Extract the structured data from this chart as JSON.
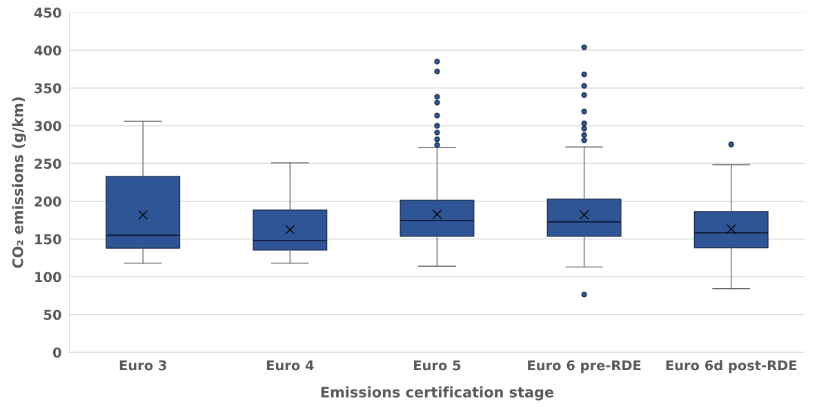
{
  "chart_data": {
    "type": "box",
    "xlabel": "Emissions certification stage",
    "ylabel": "CO₂ emissions (g/km)",
    "categories": [
      "Euro 3",
      "Euro 4",
      "Euro 5",
      "Euro 6 pre-RDE",
      "Euro 6d post-RDE"
    ],
    "color": "#2f5597",
    "boxes": [
      {
        "low": 118,
        "q1": 138,
        "median": 155,
        "q3": 233,
        "high": 306,
        "mean": 182
      },
      {
        "low": 118,
        "q1": 135.5,
        "median": 148,
        "q3": 188.5,
        "high": 251,
        "mean": 162.5
      },
      {
        "low": 114,
        "q1": 153.7,
        "median": 174.6,
        "q3": 201.6,
        "high": 271.5,
        "mean": 182.8,
        "outliers": [
          385,
          372,
          338.5,
          330.7,
          313.6,
          300,
          291,
          282,
          274.5
        ]
      },
      {
        "low": 113,
        "q1": 153.7,
        "median": 172.8,
        "q3": 202.9,
        "high": 272,
        "mean": 182,
        "outliers": [
          404,
          368,
          352.8,
          340.7,
          319,
          303.3,
          296.3,
          287.8,
          280.8,
          76.5
        ]
      },
      {
        "low": 84.4,
        "q1": 138.5,
        "median": 158.2,
        "q3": 186.5,
        "high": 248.4,
        "mean": 163.3,
        "outliers": [
          275.4
        ]
      }
    ],
    "ylim": [
      0,
      450
    ],
    "yticks": [
      0,
      50,
      100,
      150,
      200,
      250,
      300,
      350,
      400,
      450
    ],
    "grid": "y",
    "marker": "cross"
  }
}
